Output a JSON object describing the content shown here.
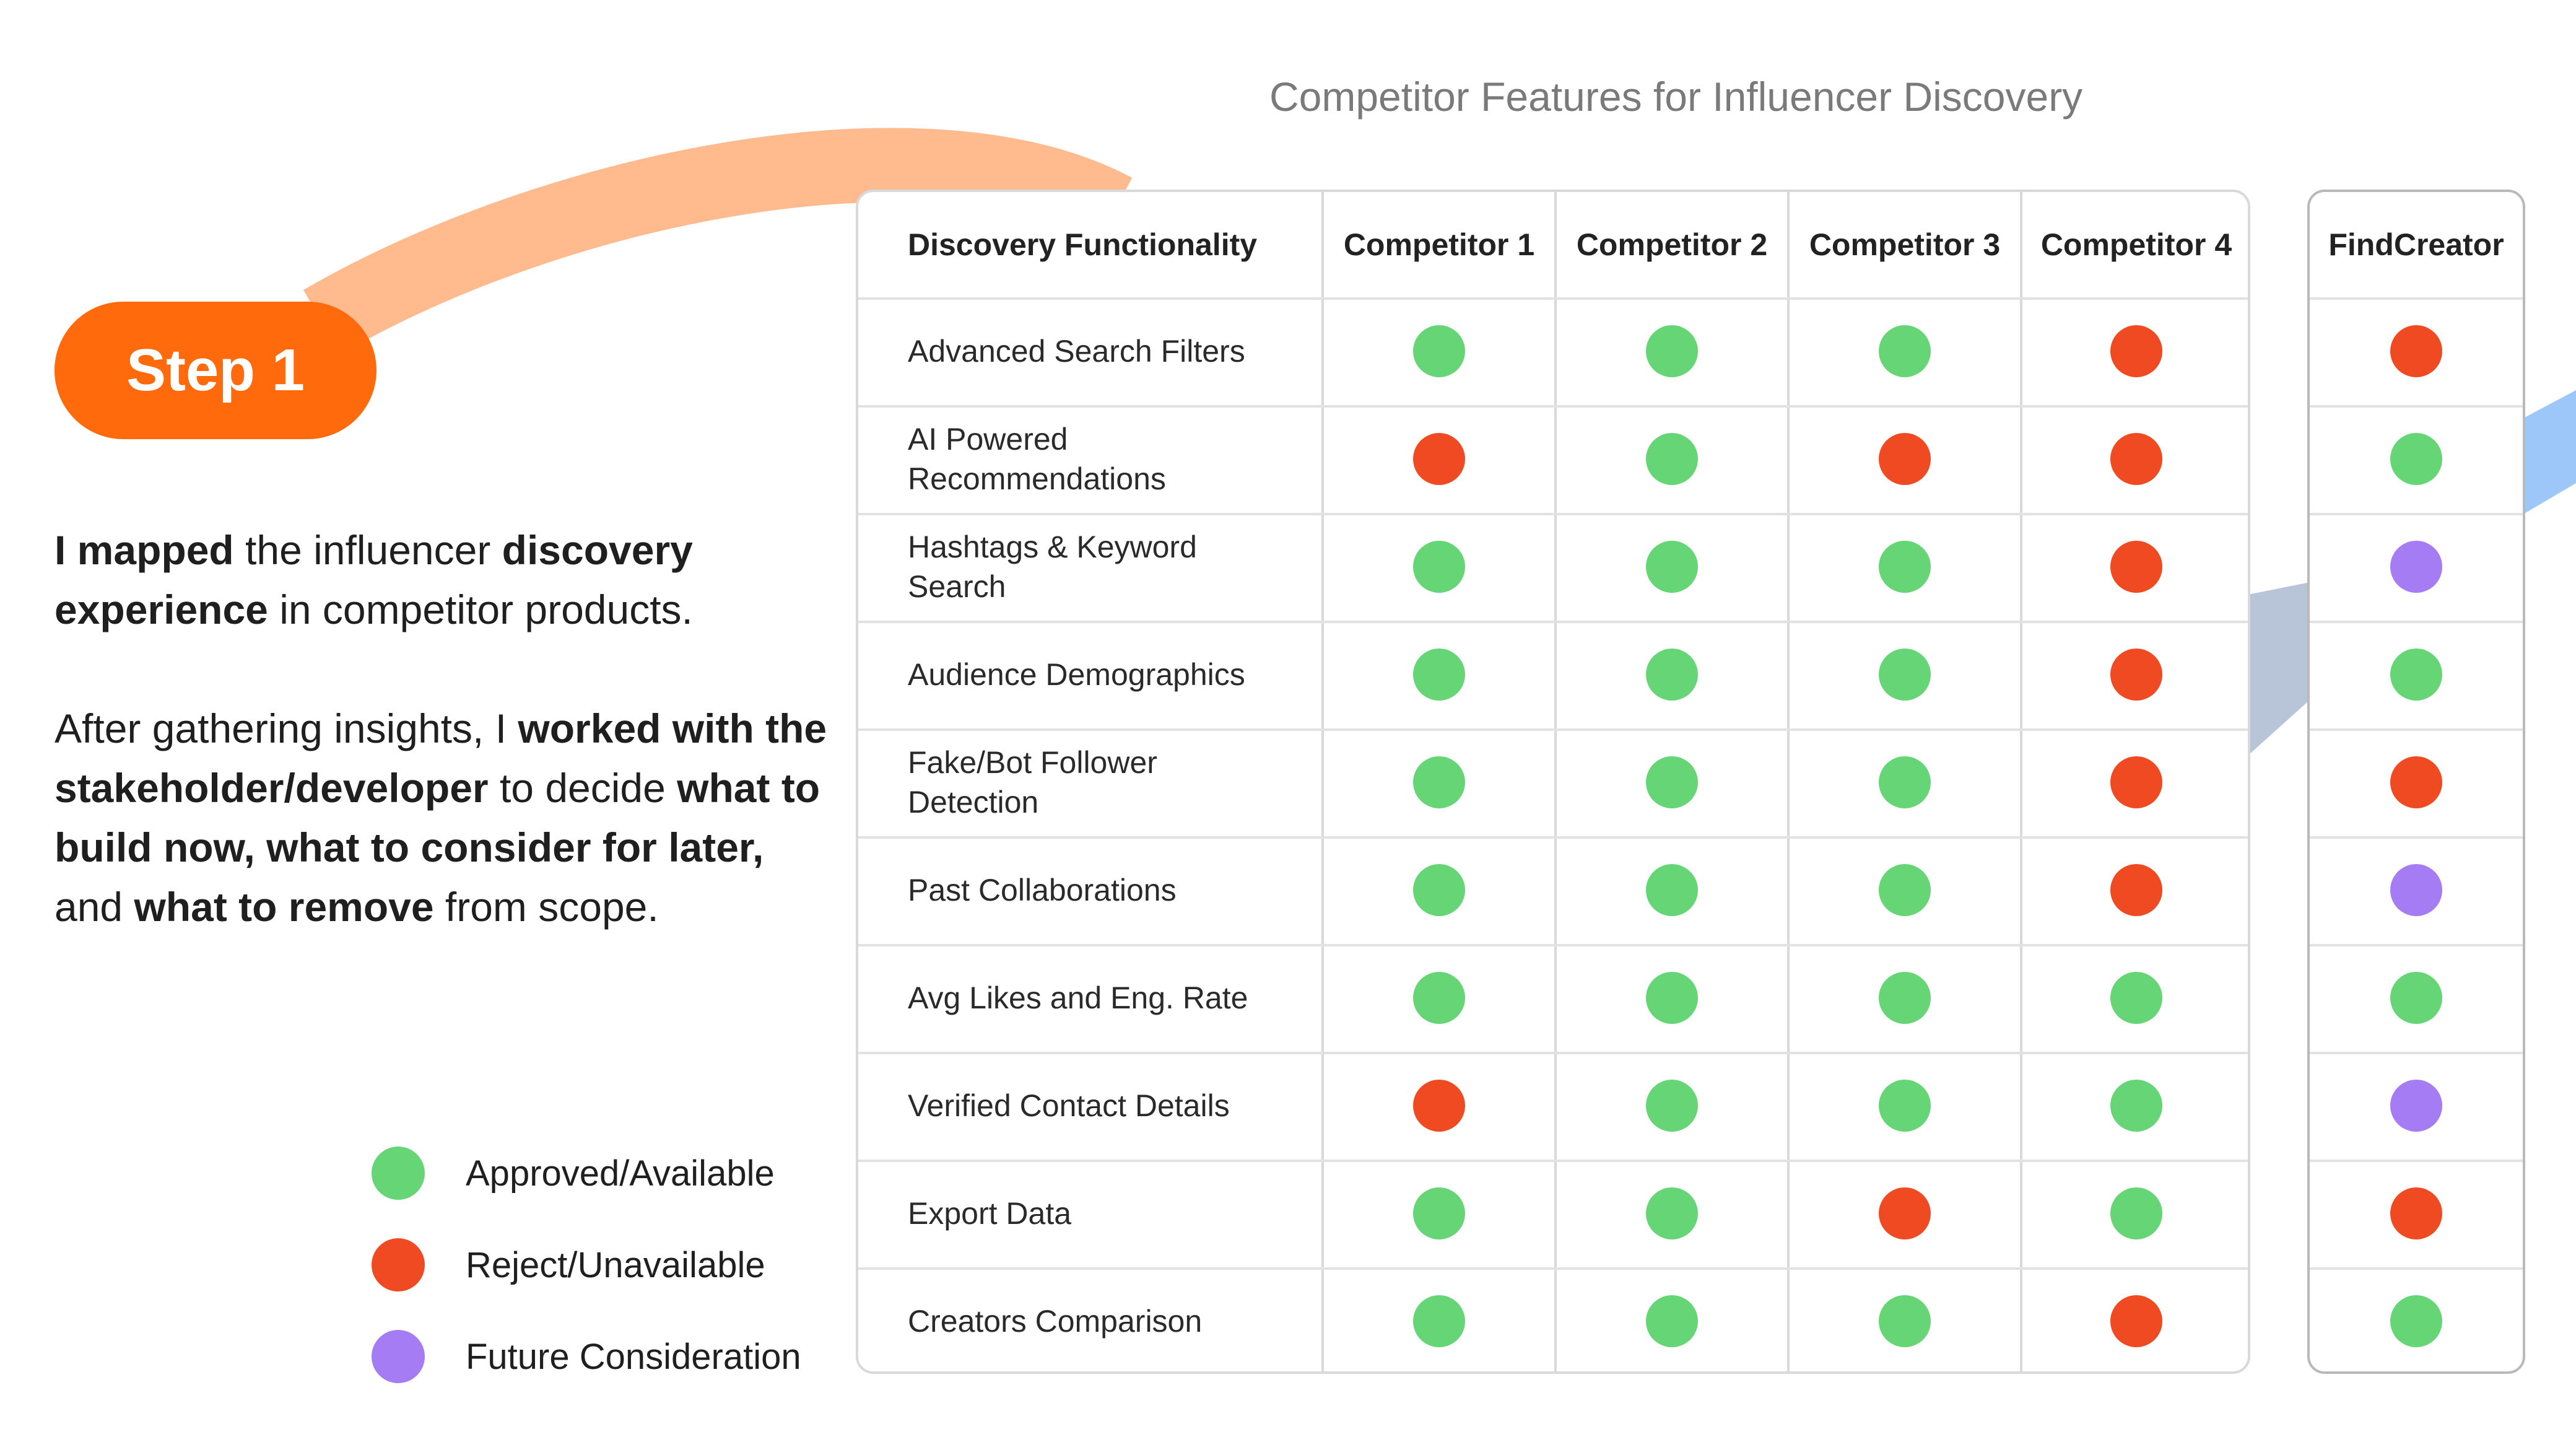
{
  "step_label": "Step 1",
  "intro": {
    "p1": [
      {
        "t": "I mapped",
        "b": true
      },
      {
        "t": " the influencer ",
        "b": false
      },
      {
        "t": "discovery experience",
        "b": true
      },
      {
        "t": " in competitor products.",
        "b": false
      }
    ],
    "p2": [
      {
        "t": "After gathering insights, I ",
        "b": false
      },
      {
        "t": "worked with the stakeholder/developer",
        "b": true
      },
      {
        "t": " to decide ",
        "b": false
      },
      {
        "t": "what to build now, what to consider for later,",
        "b": true
      },
      {
        "t": " and ",
        "b": false
      },
      {
        "t": "what to remove",
        "b": true
      },
      {
        "t": " from scope.",
        "b": false
      }
    ]
  },
  "legend": [
    {
      "key": "available",
      "label": "Approved/Available",
      "color": "#66d575"
    },
    {
      "key": "unavailable",
      "label": "Reject/Unavailable",
      "color": "#f04a23"
    },
    {
      "key": "future",
      "label": "Future Consideration",
      "color": "#a57cf3"
    }
  ],
  "table": {
    "title": "Competitor Features for Influencer Discovery",
    "feature_header": "Discovery Functionality",
    "competitors": [
      "Competitor 1",
      "Competitor 2",
      "Competitor 3",
      "Competitor 4"
    ],
    "product": "FindCreator",
    "rows": [
      {
        "feature": "Advanced Search Filters",
        "values": [
          "available",
          "available",
          "available",
          "unavailable"
        ],
        "product": "unavailable"
      },
      {
        "feature": "AI Powered Recommendations",
        "values": [
          "unavailable",
          "available",
          "unavailable",
          "unavailable"
        ],
        "product": "available"
      },
      {
        "feature": "Hashtags & Keyword Search",
        "values": [
          "available",
          "available",
          "available",
          "unavailable"
        ],
        "product": "future"
      },
      {
        "feature": "Audience Demographics",
        "values": [
          "available",
          "available",
          "available",
          "unavailable"
        ],
        "product": "available"
      },
      {
        "feature": "Fake/Bot Follower Detection",
        "values": [
          "available",
          "available",
          "available",
          "unavailable"
        ],
        "product": "unavailable"
      },
      {
        "feature": "Past Collaborations",
        "values": [
          "available",
          "available",
          "available",
          "unavailable"
        ],
        "product": "future"
      },
      {
        "feature": "Avg Likes and Eng. Rate",
        "values": [
          "available",
          "available",
          "available",
          "available"
        ],
        "product": "available"
      },
      {
        "feature": "Verified Contact Details",
        "values": [
          "unavailable",
          "available",
          "available",
          "available"
        ],
        "product": "future"
      },
      {
        "feature": "Export Data",
        "values": [
          "available",
          "available",
          "unavailable",
          "available"
        ],
        "product": "unavailable"
      },
      {
        "feature": "Creators Comparison",
        "values": [
          "available",
          "available",
          "available",
          "unavailable"
        ],
        "product": "available"
      }
    ]
  }
}
